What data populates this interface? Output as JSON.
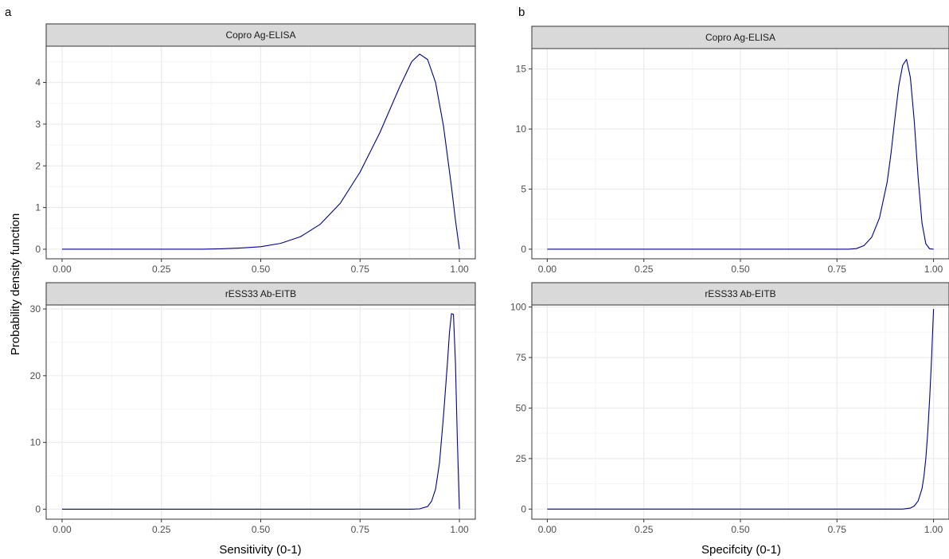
{
  "figure": {
    "ylabel": "Probability density function",
    "colors": {
      "curve": "#00008B",
      "strip_bg": "#D9D9D9",
      "frame": "#333333",
      "grid_major": "#EBEBEB",
      "grid_minor": "#F5F5F5",
      "tick_text": "#4D4D4D"
    }
  },
  "chart_data": [
    {
      "id": "a",
      "tag": "a",
      "type": "line",
      "xlabel": "Sensitivity (0-1)",
      "facets": [
        {
          "strip": "Copro Ag-ELISA",
          "xlim": [
            -0.04,
            1.04
          ],
          "ylim": [
            -0.23,
            4.87
          ],
          "xticks": [
            0,
            0.25,
            0.5,
            0.75,
            1
          ],
          "xtick_labels": [
            "0.00",
            "0.25",
            "0.50",
            "0.75",
            "1.00"
          ],
          "yticks": [
            0,
            1,
            2,
            3,
            4
          ],
          "ytick_labels": [
            "0",
            "1",
            "2",
            "3",
            "4"
          ],
          "series": [
            {
              "x": [
                0,
                0.35,
                0.4,
                0.45,
                0.5,
                0.55,
                0.6,
                0.65,
                0.7,
                0.75,
                0.8,
                0.85,
                0.88,
                0.9,
                0.92,
                0.94,
                0.96,
                0.98,
                0.99,
                1
              ],
              "y": [
                0,
                0,
                0.01,
                0.03,
                0.06,
                0.14,
                0.3,
                0.6,
                1.1,
                1.85,
                2.8,
                3.9,
                4.5,
                4.68,
                4.55,
                4.0,
                2.95,
                1.5,
                0.7,
                0
              ]
            }
          ]
        },
        {
          "strip": "rESS33 Ab-EITB",
          "xlim": [
            -0.04,
            1.04
          ],
          "ylim": [
            -1.5,
            30.6
          ],
          "xticks": [
            0,
            0.25,
            0.5,
            0.75,
            1
          ],
          "xtick_labels": [
            "0.00",
            "0.25",
            "0.50",
            "0.75",
            "1.00"
          ],
          "yticks": [
            0,
            10,
            20,
            30
          ],
          "ytick_labels": [
            "0",
            "10",
            "20",
            "30"
          ],
          "series": [
            {
              "x": [
                0,
                0.88,
                0.9,
                0.92,
                0.93,
                0.94,
                0.95,
                0.96,
                0.97,
                0.975,
                0.98,
                0.985,
                0.99,
                0.995,
                1
              ],
              "y": [
                0,
                0,
                0.05,
                0.4,
                1.2,
                3.0,
                7.0,
                14.0,
                22.0,
                26.5,
                29.3,
                29.2,
                22.0,
                10.0,
                0
              ]
            }
          ]
        }
      ]
    },
    {
      "id": "b",
      "tag": "b",
      "type": "line",
      "xlabel": "Specifcity (0-1)",
      "facets": [
        {
          "strip": "Copro Ag-ELISA",
          "xlim": [
            -0.04,
            1.04
          ],
          "ylim": [
            -0.8,
            16.7
          ],
          "xticks": [
            0,
            0.25,
            0.5,
            0.75,
            1
          ],
          "xtick_labels": [
            "0.00",
            "0.25",
            "0.50",
            "0.75",
            "1.00"
          ],
          "yticks": [
            0,
            5,
            10,
            15
          ],
          "ytick_labels": [
            "0",
            "5",
            "10",
            "15"
          ],
          "series": [
            {
              "x": [
                0,
                0.78,
                0.8,
                0.82,
                0.84,
                0.86,
                0.88,
                0.89,
                0.9,
                0.91,
                0.92,
                0.93,
                0.94,
                0.95,
                0.96,
                0.97,
                0.98,
                0.99,
                1
              ],
              "y": [
                0,
                0,
                0.05,
                0.3,
                1.0,
                2.6,
                5.6,
                8.0,
                10.9,
                13.6,
                15.3,
                15.8,
                14.3,
                10.7,
                6.0,
                2.2,
                0.45,
                0.03,
                0
              ]
            }
          ]
        },
        {
          "strip": "rESS33 Ab-EITB",
          "xlim": [
            -0.04,
            1.04
          ],
          "ylim": [
            -5,
            101
          ],
          "xticks": [
            0,
            0.25,
            0.5,
            0.75,
            1
          ],
          "xtick_labels": [
            "0.00",
            "0.25",
            "0.50",
            "0.75",
            "1.00"
          ],
          "yticks": [
            0,
            25,
            50,
            75,
            100
          ],
          "ytick_labels": [
            "0",
            "25",
            "50",
            "75",
            "100"
          ],
          "series": [
            {
              "x": [
                0,
                0.92,
                0.94,
                0.95,
                0.96,
                0.97,
                0.975,
                0.98,
                0.985,
                0.99,
                0.995,
                1
              ],
              "y": [
                0,
                0,
                0.5,
                1.5,
                4,
                10,
                16,
                25,
                38,
                55,
                75,
                99
              ]
            }
          ]
        }
      ]
    }
  ]
}
